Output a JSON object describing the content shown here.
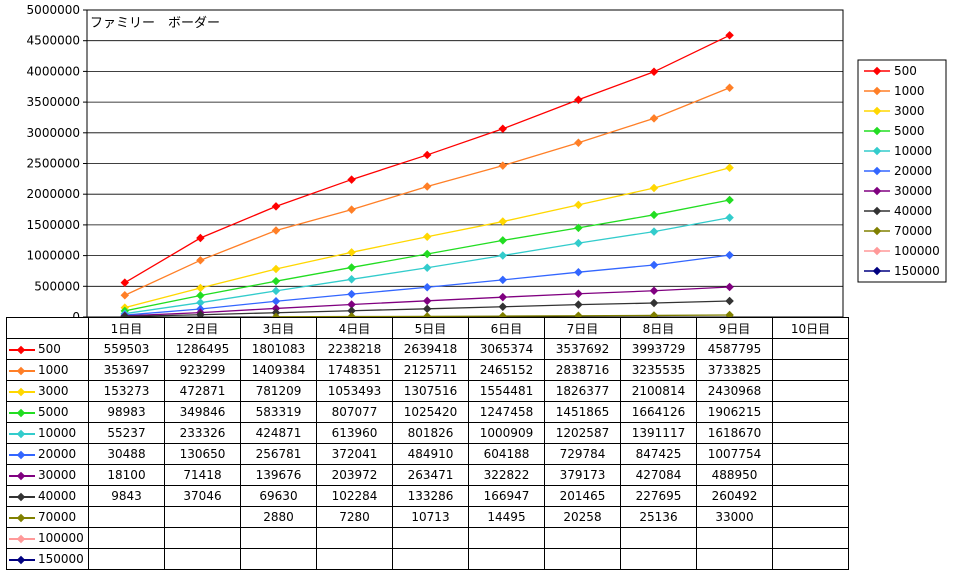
{
  "chart_data": {
    "type": "line",
    "title": "ファミリー　ボーダー",
    "categories": [
      "1日目",
      "2日目",
      "3日目",
      "4日目",
      "5日目",
      "6日目",
      "7日目",
      "8日目",
      "9日目",
      "10日目"
    ],
    "ylim": [
      0,
      5000000
    ],
    "yticks": [
      "0",
      "500000",
      "1000000",
      "1500000",
      "2000000",
      "2500000",
      "3000000",
      "3500000",
      "4000000",
      "4500000",
      "5000000"
    ],
    "grid": "horizontal",
    "legend_position": "right",
    "series": [
      {
        "name": "500",
        "color": "#ff0000",
        "values": [
          559503,
          1286495,
          1801083,
          2238218,
          2639418,
          3065374,
          3537692,
          3993729,
          4587795,
          null
        ]
      },
      {
        "name": "1000",
        "color": "#ff7f27",
        "values": [
          353697,
          923299,
          1409384,
          1748351,
          2125711,
          2465152,
          2838716,
          3235535,
          3733825,
          null
        ]
      },
      {
        "name": "3000",
        "color": "#ffd700",
        "values": [
          153273,
          472871,
          781209,
          1053493,
          1307516,
          1554481,
          1826377,
          2100814,
          2430968,
          null
        ]
      },
      {
        "name": "5000",
        "color": "#22dd22",
        "values": [
          98983,
          349846,
          583319,
          807077,
          1025420,
          1247458,
          1451865,
          1664126,
          1906215,
          null
        ]
      },
      {
        "name": "10000",
        "color": "#33cccc",
        "values": [
          55237,
          233326,
          424871,
          613960,
          801826,
          1000909,
          1202587,
          1391117,
          1618670,
          null
        ]
      },
      {
        "name": "20000",
        "color": "#3366ff",
        "values": [
          30488,
          130650,
          256781,
          372041,
          484910,
          604188,
          729784,
          847425,
          1007754,
          null
        ]
      },
      {
        "name": "30000",
        "color": "#800080",
        "values": [
          18100,
          71418,
          139676,
          203972,
          263471,
          322822,
          379173,
          427084,
          488950,
          null
        ]
      },
      {
        "name": "40000",
        "color": "#333333",
        "values": [
          9843,
          37046,
          69630,
          102284,
          133286,
          166947,
          201465,
          227695,
          260492,
          null
        ]
      },
      {
        "name": "70000",
        "color": "#808000",
        "values": [
          null,
          null,
          2880,
          7280,
          10713,
          14495,
          20258,
          25136,
          33000,
          null
        ]
      },
      {
        "name": "100000",
        "color": "#ff9999",
        "values": [
          null,
          null,
          null,
          null,
          null,
          null,
          null,
          null,
          null,
          null
        ]
      },
      {
        "name": "150000",
        "color": "#000080",
        "values": [
          null,
          null,
          null,
          null,
          null,
          null,
          null,
          null,
          null,
          null
        ]
      }
    ],
    "table_rows": [
      [
        "559503",
        "1286495",
        "1801083",
        "2238218",
        "2639418",
        "3065374",
        "3537692",
        "3993729",
        "4587795",
        ""
      ],
      [
        "353697",
        "923299",
        "1409384",
        "1748351",
        "2125711",
        "2465152",
        "2838716",
        "3235535",
        "3733825",
        ""
      ],
      [
        "153273",
        "472871",
        "781209",
        "1053493",
        "1307516",
        "1554481",
        "1826377",
        "2100814",
        "2430968",
        ""
      ],
      [
        "98983",
        "349846",
        "583319",
        "807077",
        "1025420",
        "1247458",
        "1451865",
        "1664126",
        "1906215",
        ""
      ],
      [
        "55237",
        "233326",
        "424871",
        "613960",
        "801826",
        "1000909",
        "1202587",
        "1391117",
        "1618670",
        ""
      ],
      [
        "30488",
        "130650",
        "256781",
        "372041",
        "484910",
        "604188",
        "729784",
        "847425",
        "1007754",
        ""
      ],
      [
        "18100",
        "71418",
        "139676",
        "203972",
        "263471",
        "322822",
        "379173",
        "427084",
        "488950",
        ""
      ],
      [
        "9843",
        "37046",
        "69630",
        "102284",
        "133286",
        "166947",
        "201465",
        "227695",
        "260492",
        ""
      ],
      [
        "",
        "",
        "2880",
        "7280",
        "10713",
        "14495",
        "20258",
        "25136",
        "33000",
        ""
      ],
      [
        "",
        "",
        "",
        "",
        "",
        "",
        "",
        "",
        "",
        ""
      ],
      [
        "",
        "",
        "",
        "",
        "",
        "",
        "",
        "",
        "",
        ""
      ]
    ]
  }
}
